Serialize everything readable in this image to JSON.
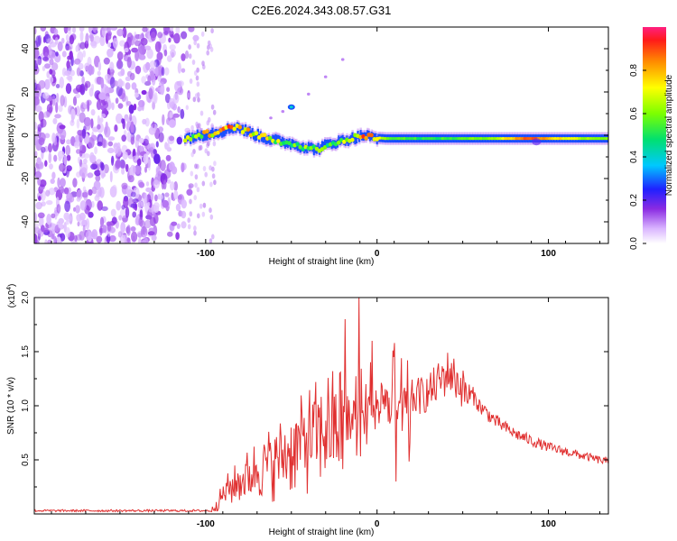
{
  "title": "C2E6.2024.343.08.57.G31",
  "colors": {
    "snr_line": "#e03030",
    "frame": "#000000"
  },
  "chart_data": [
    {
      "type": "heatmap",
      "name": "spectrogram",
      "xlabel": "Height of straight line (km)",
      "ylabel": "Frequency (Hz)",
      "xlim": [
        -200,
        135
      ],
      "ylim": [
        -50,
        50
      ],
      "xticks": [
        -100,
        0,
        100
      ],
      "yticks": [
        -40,
        -20,
        0,
        20,
        40
      ],
      "noise_region_x": [
        -200,
        -105
      ],
      "signal_track": [
        {
          "x": -112,
          "y": -1.5,
          "a": 0.55
        },
        {
          "x": -100,
          "y": 0.5,
          "a": 0.7
        },
        {
          "x": -90,
          "y": 2,
          "a": 0.8
        },
        {
          "x": -82,
          "y": 4,
          "a": 0.85
        },
        {
          "x": -78,
          "y": 2.5,
          "a": 0.7
        },
        {
          "x": -72,
          "y": 0.5,
          "a": 0.75
        },
        {
          "x": -62,
          "y": -2,
          "a": 0.65
        },
        {
          "x": -52,
          "y": -3.5,
          "a": 0.6
        },
        {
          "x": -42,
          "y": -5.5,
          "a": 0.55
        },
        {
          "x": -35,
          "y": -6.5,
          "a": 0.5
        },
        {
          "x": -28,
          "y": -4,
          "a": 0.55
        },
        {
          "x": -20,
          "y": -2.5,
          "a": 0.65
        },
        {
          "x": -12,
          "y": -1,
          "a": 0.75
        },
        {
          "x": -8,
          "y": 0,
          "a": 0.9
        },
        {
          "x": -3,
          "y": -1,
          "a": 0.8
        },
        {
          "x": 5,
          "y": -1.5,
          "a": 0.6
        },
        {
          "x": 15,
          "y": -1.5,
          "a": 0.55
        },
        {
          "x": 30,
          "y": -1.5,
          "a": 0.5
        },
        {
          "x": 50,
          "y": -1.5,
          "a": 0.55
        },
        {
          "x": 70,
          "y": -1.5,
          "a": 0.65
        },
        {
          "x": 80,
          "y": -1.5,
          "a": 0.8
        },
        {
          "x": 88,
          "y": -1.5,
          "a": 0.9
        },
        {
          "x": 95,
          "y": -1.5,
          "a": 0.85
        },
        {
          "x": 105,
          "y": -1.5,
          "a": 0.75
        },
        {
          "x": 120,
          "y": -1.5,
          "a": 0.65
        },
        {
          "x": 135,
          "y": -1.5,
          "a": 0.6
        }
      ],
      "harmonic_track": [
        {
          "x": -62,
          "y": 8
        },
        {
          "x": -55,
          "y": 11
        },
        {
          "x": -50,
          "y": 13
        },
        {
          "x": -40,
          "y": 19
        },
        {
          "x": -30,
          "y": 27
        },
        {
          "x": -20,
          "y": 35
        }
      ],
      "colorbar": {
        "label": "Normalized spectral amplitude",
        "range": [
          0.0,
          1.0
        ],
        "ticks": [
          0.0,
          0.2,
          0.4,
          0.6,
          0.8
        ]
      }
    },
    {
      "type": "line",
      "name": "snr",
      "xlabel": "Height of straight line (km)",
      "ylabel": "SNR (10 * v/v)",
      "multiplier_label": "(x10",
      "multiplier_exp": "4",
      "multiplier_close": ")",
      "xlim": [
        -200,
        135
      ],
      "ylim": [
        0,
        20000
      ],
      "xticks": [
        -100,
        0,
        100
      ],
      "yticks": [
        5000,
        10000,
        15000,
        20000
      ],
      "ytick_labels": [
        "0.5",
        "1.0",
        "1.5",
        "2.0"
      ],
      "envelope": [
        {
          "x": -200,
          "y": 300
        },
        {
          "x": -97,
          "y": 300
        },
        {
          "x": -93,
          "y": 1500
        },
        {
          "x": -88,
          "y": 3000
        },
        {
          "x": -78,
          "y": 4500
        },
        {
          "x": -68,
          "y": 6000
        },
        {
          "x": -58,
          "y": 7000
        },
        {
          "x": -48,
          "y": 8500
        },
        {
          "x": -38,
          "y": 10000
        },
        {
          "x": -28,
          "y": 11000
        },
        {
          "x": -20,
          "y": 11500
        },
        {
          "x": -12,
          "y": 11000
        },
        {
          "x": -5,
          "y": 12000
        },
        {
          "x": 5,
          "y": 12500
        },
        {
          "x": 12,
          "y": 12500
        },
        {
          "x": 20,
          "y": 11500
        },
        {
          "x": 30,
          "y": 12000
        },
        {
          "x": 42,
          "y": 14200
        },
        {
          "x": 50,
          "y": 12500
        },
        {
          "x": 60,
          "y": 10000
        },
        {
          "x": 70,
          "y": 8500
        },
        {
          "x": 80,
          "y": 7500
        },
        {
          "x": 90,
          "y": 6800
        },
        {
          "x": 100,
          "y": 6200
        },
        {
          "x": 115,
          "y": 5600
        },
        {
          "x": 125,
          "y": 5200
        },
        {
          "x": 135,
          "y": 4800
        }
      ],
      "spikes": [
        {
          "x": -10.5,
          "y": 20000
        },
        {
          "x": 11,
          "y": 3000
        },
        {
          "x": 10,
          "y": 15800
        },
        {
          "x": -18.5,
          "y": 18000
        },
        {
          "x": -3,
          "y": 16000
        }
      ]
    }
  ]
}
